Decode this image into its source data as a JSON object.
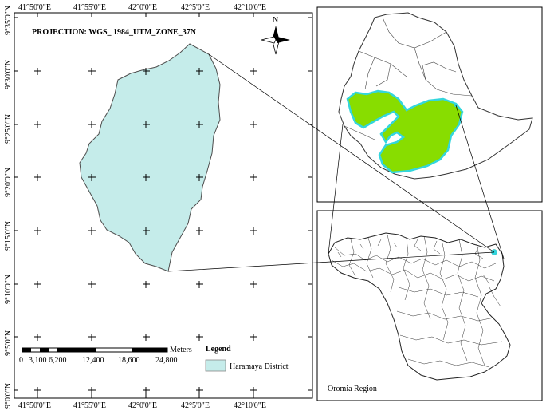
{
  "main_map": {
    "projection": "PROJECTION: WGS_ 1984_UTM_ZONE_37N",
    "north_label": "N",
    "top_ticks": [
      "41°50'0\"E",
      "41°55'0\"E",
      "42°0'0\"E",
      "42°5'0\"E",
      "42°10'0\"E"
    ],
    "bottom_ticks": [
      "41°50'0\"E",
      "41°55'0\"E",
      "42°0'0\"E",
      "42°5'0\"E",
      "42°10'0\"E"
    ],
    "left_ticks": [
      "9°35'0\"N",
      "9°30'0\"N",
      "9°25'0\"N",
      "9°20'0\"N",
      "9°15'0\"N",
      "9°10'0\"N",
      "9°5'0\"N",
      "9°0'0\"N"
    ],
    "scale_bar": {
      "unit": "Meters",
      "labels": [
        "0",
        "3,100",
        "6,200",
        "12,400",
        "18,600",
        "24,800"
      ]
    },
    "legend": {
      "title": "Legend",
      "item_label": "Haramaya District",
      "item_color": "#c5ecea"
    }
  },
  "inset_ethiopia": {
    "highlight_color": "#88dd00",
    "outline_color": "#33d6dd"
  },
  "inset_oromia": {
    "label": "Oromia Region"
  }
}
